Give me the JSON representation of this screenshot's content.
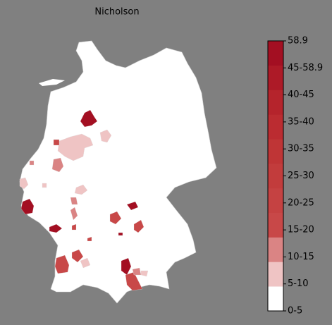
{
  "title": "Nicholson",
  "colorbar": {
    "ticks": [
      "0-5",
      "5-10",
      "10-15",
      "15-20",
      "20-25",
      "25-30",
      "30-35",
      "35-40",
      "40-45",
      "45-58.9",
      "58.9"
    ],
    "colors": [
      "#ffffff",
      "#efc4c4",
      "#da8484",
      "#c84848",
      "#c54242",
      "#c23c3c",
      "#bf3536",
      "#bb2c31",
      "#b5242c",
      "#ad1a27",
      "#a30f22"
    ]
  }
}
